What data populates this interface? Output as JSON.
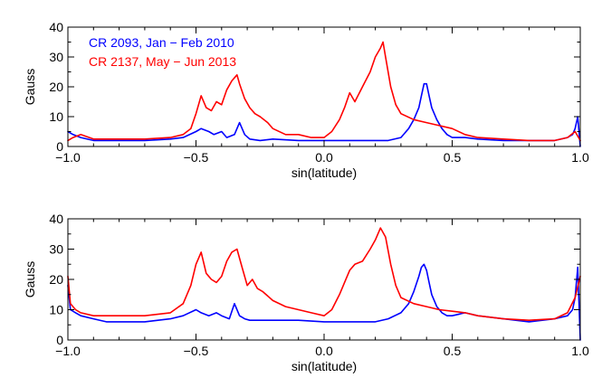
{
  "chart_data": [
    {
      "type": "line",
      "xlabel": "sin(latitude)",
      "ylabel": "Gauss",
      "xlim": [
        -1.0,
        1.0
      ],
      "ylim": [
        0,
        40
      ],
      "xticks": [
        -1.0,
        -0.5,
        0.0,
        0.5,
        1.0
      ],
      "xtick_labels": [
        "−1.0",
        "−0.5",
        "0.0",
        "0.5",
        "1.0"
      ],
      "yticks": [
        0,
        10,
        20,
        30,
        40
      ],
      "ytick_labels": [
        "0",
        "10",
        "20",
        "30",
        "40"
      ],
      "grid": false,
      "legend_position": "top-left",
      "series": [
        {
          "name": "CR 2093, Jan − Feb 2010",
          "color": "#0000ff",
          "x": [
            -1.0,
            -0.98,
            -0.95,
            -0.9,
            -0.85,
            -0.8,
            -0.7,
            -0.6,
            -0.55,
            -0.5,
            -0.48,
            -0.45,
            -0.43,
            -0.4,
            -0.38,
            -0.35,
            -0.33,
            -0.31,
            -0.29,
            -0.25,
            -0.2,
            -0.1,
            0.0,
            0.1,
            0.2,
            0.25,
            0.3,
            0.33,
            0.35,
            0.37,
            0.38,
            0.39,
            0.4,
            0.41,
            0.42,
            0.44,
            0.46,
            0.48,
            0.5,
            0.55,
            0.6,
            0.7,
            0.8,
            0.9,
            0.95,
            0.97,
            0.98,
            0.99,
            1.0
          ],
          "values": [
            5,
            4,
            3,
            2,
            2,
            2,
            2,
            2.5,
            3,
            5,
            6,
            5,
            4,
            5,
            3,
            4,
            8,
            4,
            2.5,
            2,
            2.5,
            2,
            2,
            2,
            2,
            2,
            3,
            6,
            9,
            13,
            17,
            21,
            21,
            17,
            13,
            9,
            6,
            4,
            3,
            3,
            2.5,
            2,
            2,
            2,
            3,
            4,
            6,
            10,
            0
          ]
        },
        {
          "name": "CR 2137, May − Jun 2013",
          "color": "#ff0000",
          "x": [
            -1.0,
            -0.98,
            -0.95,
            -0.9,
            -0.8,
            -0.7,
            -0.6,
            -0.55,
            -0.52,
            -0.5,
            -0.48,
            -0.46,
            -0.44,
            -0.42,
            -0.4,
            -0.38,
            -0.36,
            -0.34,
            -0.33,
            -0.31,
            -0.29,
            -0.27,
            -0.25,
            -0.22,
            -0.2,
            -0.15,
            -0.1,
            -0.05,
            0.0,
            0.03,
            0.06,
            0.08,
            0.1,
            0.12,
            0.15,
            0.18,
            0.2,
            0.22,
            0.23,
            0.24,
            0.26,
            0.28,
            0.3,
            0.35,
            0.4,
            0.45,
            0.5,
            0.55,
            0.6,
            0.7,
            0.8,
            0.9,
            0.95,
            0.98,
            1.0
          ],
          "values": [
            2,
            3,
            4,
            2.5,
            2.5,
            2.5,
            3,
            4,
            6,
            11,
            17,
            13,
            12,
            15,
            14,
            19,
            22,
            24,
            21,
            16,
            13,
            11,
            10,
            8,
            6,
            4,
            4,
            3,
            3,
            5,
            9,
            13,
            18,
            15,
            20,
            25,
            30,
            33,
            35,
            30,
            20,
            14,
            11,
            9,
            8,
            7,
            6,
            4,
            3,
            2.5,
            2,
            2,
            3,
            5,
            2
          ]
        }
      ]
    },
    {
      "type": "line",
      "xlabel": "sin(latitude)",
      "ylabel": "Gauss",
      "xlim": [
        -1.0,
        1.0
      ],
      "ylim": [
        0,
        40
      ],
      "xticks": [
        -1.0,
        -0.5,
        0.0,
        0.5,
        1.0
      ],
      "xtick_labels": [
        "−1.0",
        "−0.5",
        "0.0",
        "0.5",
        "1.0"
      ],
      "yticks": [
        0,
        10,
        20,
        30,
        40
      ],
      "ytick_labels": [
        "0",
        "10",
        "20",
        "30",
        "40"
      ],
      "grid": false,
      "series": [
        {
          "name": "",
          "color": "#0000ff",
          "x": [
            -1.0,
            -0.99,
            -0.97,
            -0.95,
            -0.9,
            -0.85,
            -0.8,
            -0.7,
            -0.6,
            -0.55,
            -0.5,
            -0.48,
            -0.45,
            -0.42,
            -0.4,
            -0.37,
            -0.35,
            -0.33,
            -0.31,
            -0.29,
            -0.26,
            -0.2,
            -0.1,
            0.0,
            0.1,
            0.2,
            0.25,
            0.3,
            0.33,
            0.35,
            0.37,
            0.38,
            0.39,
            0.4,
            0.41,
            0.42,
            0.44,
            0.46,
            0.48,
            0.5,
            0.55,
            0.6,
            0.7,
            0.8,
            0.9,
            0.95,
            0.97,
            0.98,
            0.99,
            1.0
          ],
          "values": [
            18,
            10,
            9,
            8,
            7,
            6,
            6,
            6,
            7,
            8,
            10,
            9,
            8,
            9,
            8,
            7,
            12,
            8,
            7,
            6.5,
            6.5,
            6.5,
            6.5,
            6,
            6,
            6,
            7,
            9,
            12,
            16,
            21,
            24,
            25,
            23,
            19,
            15,
            11,
            9,
            8,
            8,
            9,
            8,
            7,
            6,
            7,
            8,
            10,
            14,
            24,
            0
          ]
        },
        {
          "name": "",
          "color": "#ff0000",
          "x": [
            -1.0,
            -0.99,
            -0.97,
            -0.95,
            -0.9,
            -0.8,
            -0.7,
            -0.6,
            -0.55,
            -0.52,
            -0.5,
            -0.48,
            -0.46,
            -0.44,
            -0.42,
            -0.4,
            -0.38,
            -0.36,
            -0.34,
            -0.32,
            -0.3,
            -0.28,
            -0.26,
            -0.24,
            -0.2,
            -0.15,
            -0.1,
            -0.05,
            0.0,
            0.03,
            0.06,
            0.08,
            0.1,
            0.12,
            0.15,
            0.18,
            0.2,
            0.22,
            0.24,
            0.26,
            0.28,
            0.3,
            0.35,
            0.4,
            0.45,
            0.5,
            0.55,
            0.6,
            0.7,
            0.8,
            0.9,
            0.95,
            0.98,
            1.0
          ],
          "values": [
            21,
            12,
            10,
            9,
            8,
            8,
            8,
            9,
            12,
            18,
            25,
            29,
            22,
            20,
            19,
            21,
            26,
            29,
            30,
            24,
            18,
            20,
            17,
            16,
            13,
            11,
            10,
            9,
            8,
            10,
            15,
            19,
            23,
            25,
            26,
            30,
            33,
            37,
            34,
            25,
            18,
            14,
            12,
            11,
            10,
            9.5,
            9,
            8,
            7,
            6.5,
            7,
            9,
            14,
            21
          ]
        }
      ]
    }
  ]
}
